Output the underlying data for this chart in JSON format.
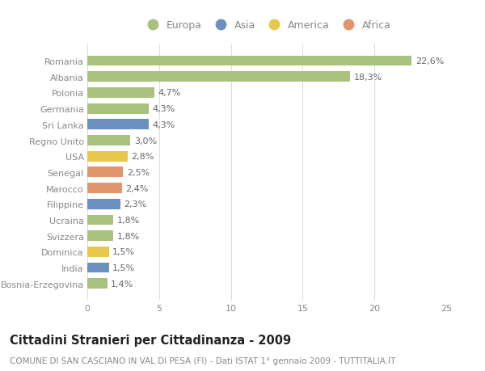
{
  "countries": [
    "Romania",
    "Albania",
    "Polonia",
    "Germania",
    "Sri Lanka",
    "Regno Unito",
    "USA",
    "Senegal",
    "Marocco",
    "Filippine",
    "Ucraina",
    "Svizzera",
    "Dominica",
    "India",
    "Bosnia-Erzegovina"
  ],
  "values": [
    22.6,
    18.3,
    4.7,
    4.3,
    4.3,
    3.0,
    2.8,
    2.5,
    2.4,
    2.3,
    1.8,
    1.8,
    1.5,
    1.5,
    1.4
  ],
  "continents": [
    "Europa",
    "Europa",
    "Europa",
    "Europa",
    "Asia",
    "Europa",
    "America",
    "Africa",
    "Africa",
    "Asia",
    "Europa",
    "Europa",
    "America",
    "Asia",
    "Europa"
  ],
  "continent_colors": {
    "Europa": "#a8c17c",
    "Asia": "#6b8fbf",
    "America": "#e8c84a",
    "Africa": "#e0956a"
  },
  "legend_order": [
    "Europa",
    "Asia",
    "America",
    "Africa"
  ],
  "xlabel_ticks": [
    0,
    5,
    10,
    15,
    20,
    25
  ],
  "title": "Cittadini Stranieri per Cittadinanza - 2009",
  "subtitle": "COMUNE DI SAN CASCIANO IN VAL DI PESA (FI) - Dati ISTAT 1° gennaio 2009 - TUTTITALIA.IT",
  "bar_height": 0.65,
  "background_color": "#ffffff",
  "grid_color": "#dddddd",
  "label_fontsize": 8,
  "title_fontsize": 10.5,
  "subtitle_fontsize": 7.5,
  "tick_fontsize": 8,
  "legend_fontsize": 9,
  "label_color": "#666666",
  "tick_color": "#888888"
}
